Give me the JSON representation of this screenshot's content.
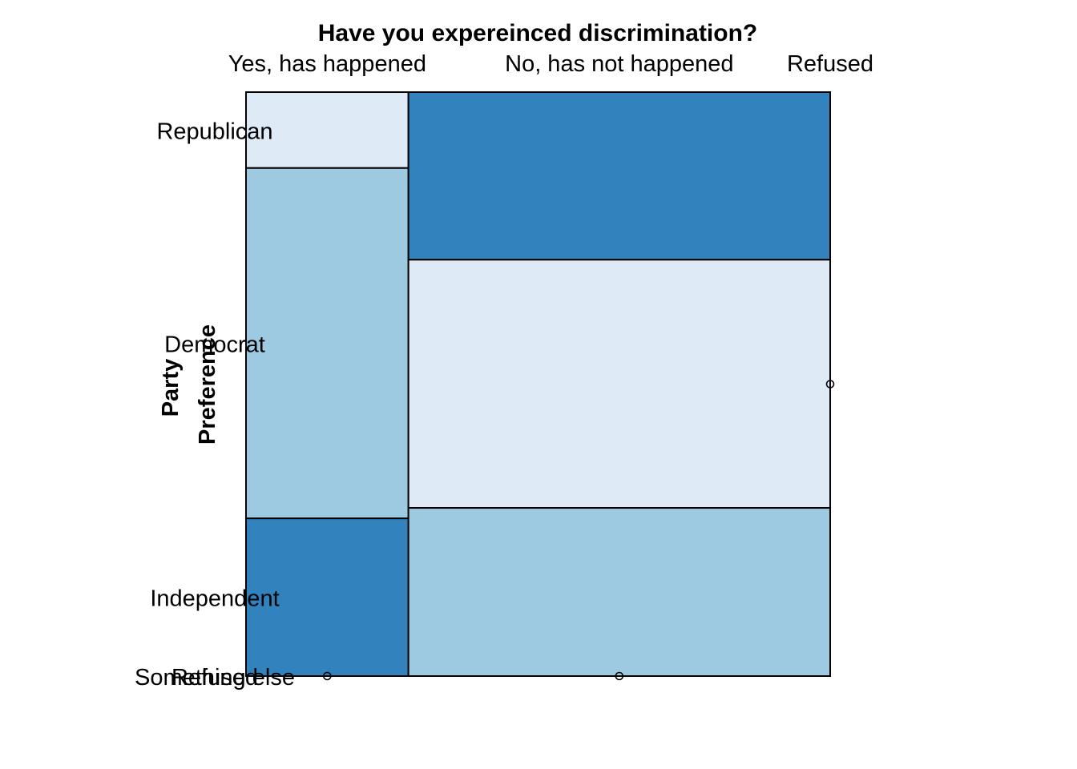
{
  "chart_data": {
    "type": "mosaic",
    "title": "Have you expereinced discrimination?",
    "ylabel": "Party\nPreference",
    "columns": [
      "Yes, has happened",
      "No, has not happened",
      "Refused"
    ],
    "rows": [
      "Republican",
      "Democrat",
      "Independent",
      "Something else",
      "Refused"
    ],
    "row_label_text": [
      "Republican",
      "Democrat",
      "Independent",
      "Something else",
      "Refused"
    ],
    "column_proportions": [
      0.278,
      0.722,
      0.0
    ],
    "cells": [
      {
        "column": "Yes, has happened",
        "proportions": [
          0.13,
          0.6,
          0.27,
          0.0,
          0.0
        ],
        "fill_levels": [
          "light",
          "mid",
          "dark",
          "none",
          "none"
        ]
      },
      {
        "column": "No, has not happened",
        "proportions": [
          0.287,
          0.425,
          0.288,
          0.0,
          0.0
        ],
        "fill_levels": [
          "dark",
          "light",
          "mid",
          "none",
          "none"
        ]
      },
      {
        "column": "Refused",
        "proportions": [
          0.0,
          0.5,
          0.0,
          0.0,
          0.5
        ],
        "fill_levels": [
          "none",
          "none",
          "none",
          "none",
          "none"
        ]
      }
    ],
    "colors": {
      "light": "#DEEBF7",
      "mid": "#9ECAE1",
      "dark": "#3182BD",
      "stroke": "#000000"
    }
  }
}
